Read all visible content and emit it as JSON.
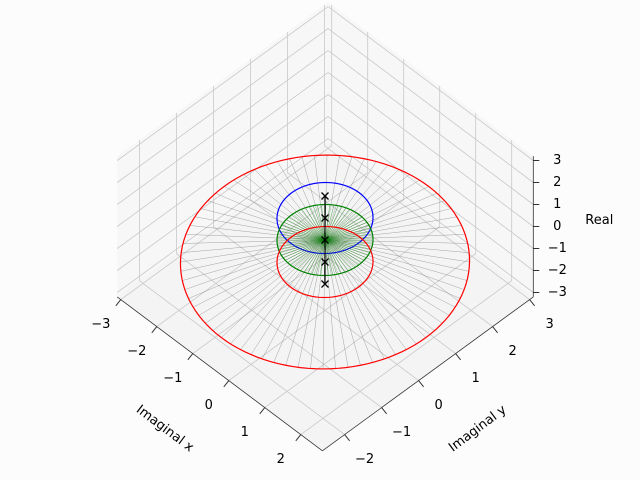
{
  "chart_data": {
    "type": "circles3d",
    "xlabel": "Imaginal x",
    "ylabel": "Imaginal y",
    "zlabel": "Real",
    "xlim": [
      -3.1,
      2.6
    ],
    "ylim": [
      -2.6,
      3.1
    ],
    "zlim": [
      -3.2,
      3.2
    ],
    "xticks": [
      {
        "value": -3,
        "label": "−3"
      },
      {
        "value": -2,
        "label": "−2"
      },
      {
        "value": -1,
        "label": "−1"
      },
      0,
      1,
      2
    ],
    "yticks": [
      {
        "value": -2,
        "label": "−2"
      },
      {
        "value": -1,
        "label": "−1"
      },
      0,
      1,
      2,
      3
    ],
    "zticks": [
      {
        "value": -3,
        "label": "−3"
      },
      {
        "value": -2,
        "label": "−2"
      },
      {
        "value": -1,
        "label": "−1"
      },
      0,
      1,
      2,
      3
    ],
    "grid": true,
    "series": [
      {
        "color": "#ff0000",
        "radius": 2.8,
        "z": -1,
        "spoke_color": "#808080"
      },
      {
        "color": "#0000ff",
        "radius": 0.93,
        "z": 1
      },
      {
        "color": "#008000",
        "radius": 0.93,
        "z": 0,
        "spoke_color": "#008000"
      },
      {
        "color": "#ff0000",
        "radius": 0.93,
        "z": -1
      }
    ],
    "markers": {
      "color": "#000000",
      "z": [
        -2,
        -1,
        0,
        1,
        2
      ]
    }
  }
}
